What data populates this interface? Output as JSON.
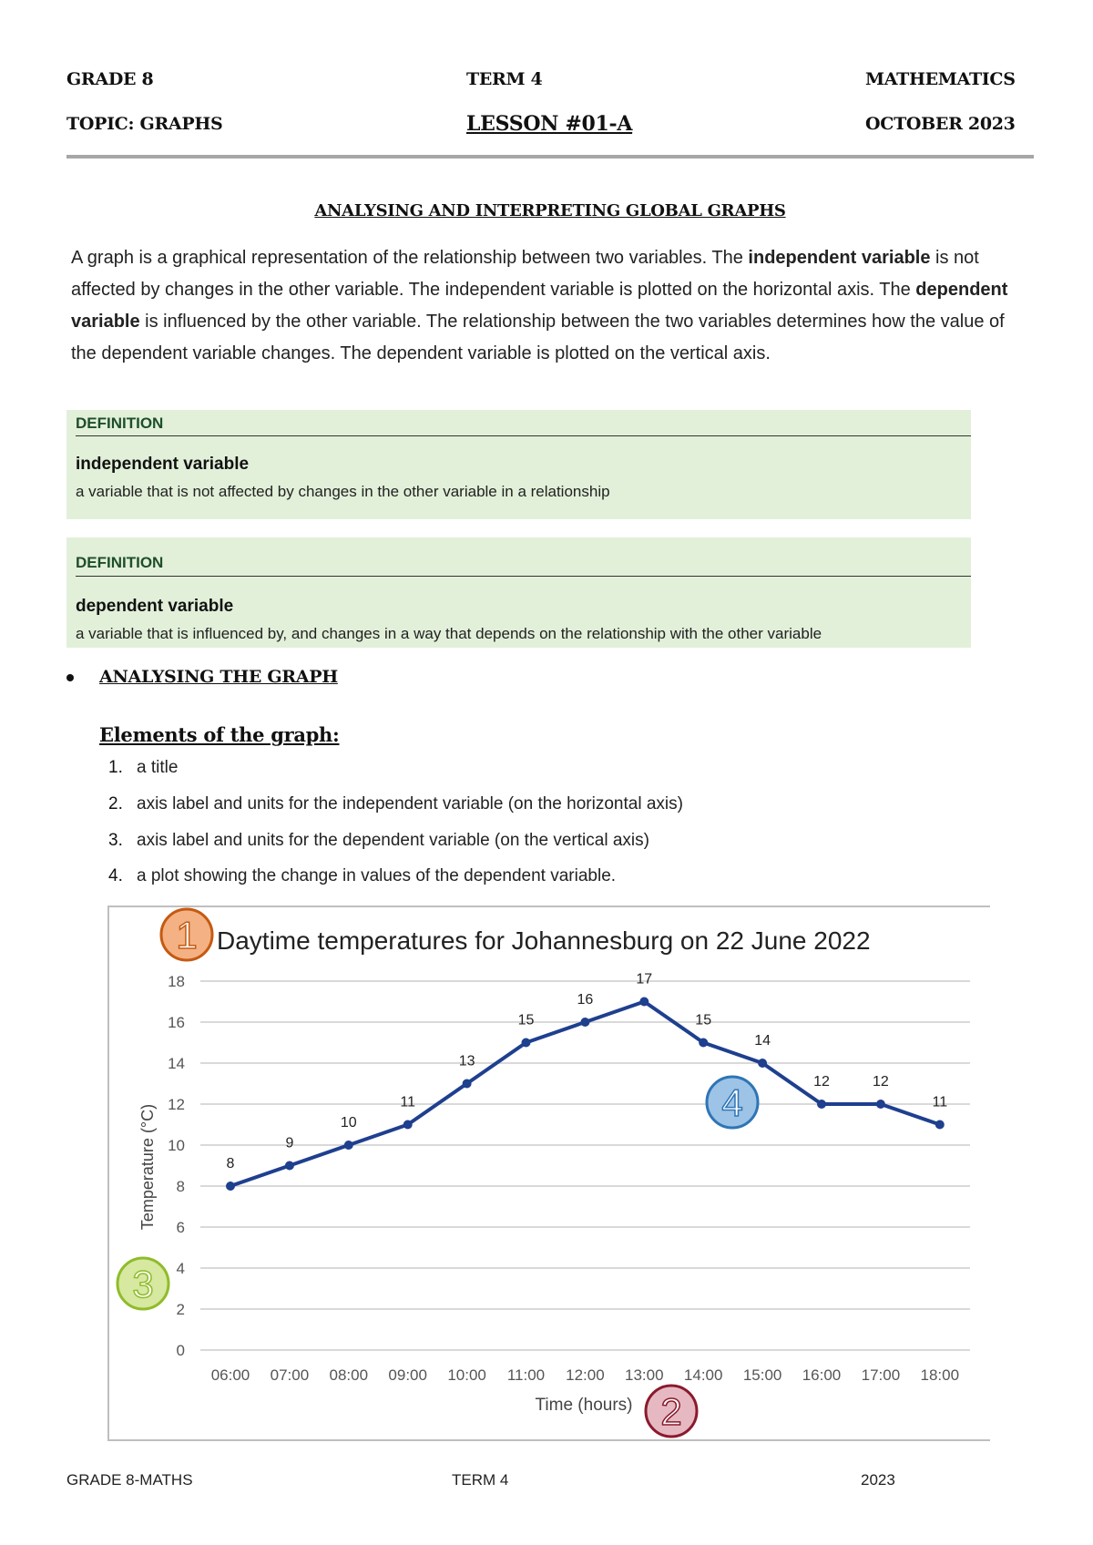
{
  "header": {
    "grade": "GRADE 8",
    "term": "TERM 4",
    "subject": "MATHEMATICS",
    "topic": "TOPIC: GRAPHS",
    "lesson": "LESSON #01-A",
    "date": "OCTOBER 2023"
  },
  "main": {
    "title": "ANALYSING AND INTERPRETING GLOBAL GRAPHS",
    "paragraph": [
      {
        "text": "A graph is a graphical representation of the relationship between two variables. The ",
        "bold": false
      },
      {
        "text": "independent variable",
        "bold": true
      },
      {
        "text": " is not affected by changes in the other variable. The independent variable is plotted on the horizontal axis. The ",
        "bold": false
      },
      {
        "text": "dependent variable",
        "bold": true
      },
      {
        "text": " is influenced by the other variable. The relationship between the two variables determines how the value of the dependent variable changes. The dependent variable is plotted on the vertical axis.",
        "bold": false
      }
    ],
    "definitions": [
      {
        "label": "DEFINITION",
        "term": "independent variable",
        "text": "a variable that is not affected by changes in the other variable in a relationship"
      },
      {
        "label": "DEFINITION",
        "term": "dependent variable",
        "text": "a variable that is influenced by, and changes in a way that depends on the relationship with the other variable"
      }
    ],
    "section_heading": "ANALYSING THE GRAPH",
    "elements_heading": "Elements of the graph:",
    "elements": [
      {
        "num": "1.",
        "text": "a title"
      },
      {
        "num": "2.",
        "text": "axis label and units for the independent variable (on the horizontal axis)"
      },
      {
        "num": "3.",
        "text": "axis label and units for the dependent variable (on the vertical axis)"
      },
      {
        "num": "4.",
        "text": "a plot showing the change in values of the dependent variable."
      }
    ]
  },
  "chart_data": {
    "type": "line",
    "title": "Daytime temperatures for Johannesburg on 22 June 2022",
    "xlabel": "Time (hours)",
    "ylabel": "Temperature (°C)",
    "categories": [
      "06:00",
      "07:00",
      "08:00",
      "09:00",
      "10:00",
      "11:00",
      "12:00",
      "13:00",
      "14:00",
      "15:00",
      "16:00",
      "17:00",
      "18:00"
    ],
    "values": [
      8,
      9,
      10,
      11,
      13,
      15,
      16,
      17,
      15,
      14,
      12,
      12,
      11
    ],
    "ylim": [
      0,
      18
    ],
    "yticks": [
      "0",
      "2",
      "4",
      "6",
      "8",
      "10",
      "12",
      "14",
      "16",
      "18"
    ],
    "grid": true,
    "data_labels": true,
    "line_color": "#1f3f8f",
    "badges": [
      {
        "label": "1",
        "marks": "title",
        "fill": "#f4b183",
        "stroke": "#c55a11"
      },
      {
        "label": "2",
        "marks": "x-axis label",
        "fill": "#e6b9c2",
        "stroke": "#8b1a2e"
      },
      {
        "label": "3",
        "marks": "y-axis label",
        "fill": "#d7e8a0",
        "stroke": "#8fbc2a"
      },
      {
        "label": "4",
        "marks": "plot",
        "fill": "#9dc3e6",
        "stroke": "#2e75b6"
      }
    ]
  },
  "footer": {
    "left": "GRADE 8-MATHS",
    "center": "TERM 4",
    "right": "2023"
  }
}
